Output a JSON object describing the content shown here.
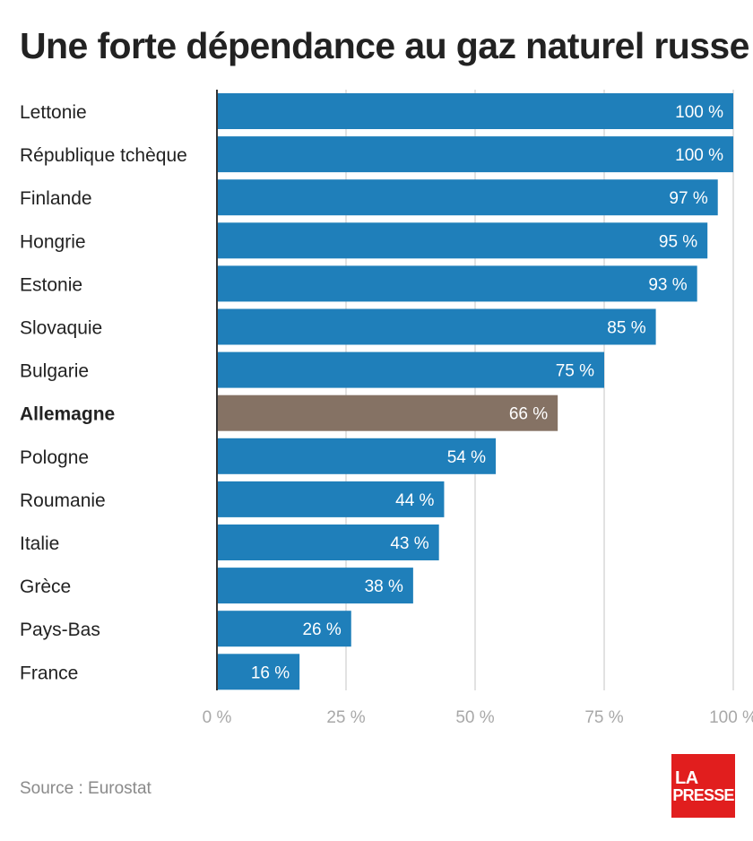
{
  "title": "Une forte dépendance au gaz naturel russe",
  "source": "Source : Eurostat",
  "logo": {
    "line1": "LA",
    "line2": "PRESSE"
  },
  "colors": {
    "bar": "#1f7fba",
    "highlight": "#857264",
    "grid": "#d9d9d9",
    "axis_text": "#a8a8a8",
    "label_text": "#222222",
    "value_text": "#ffffff",
    "logo_bg": "#e11e1e"
  },
  "chart_data": {
    "type": "bar",
    "orientation": "horizontal",
    "categories": [
      "Lettonie",
      "République tchèque",
      "Finlande",
      "Hongrie",
      "Estonie",
      "Slovaquie",
      "Bulgarie",
      "Allemagne",
      "Pologne",
      "Roumanie",
      "Italie",
      "Grèce",
      "Pays-Bas",
      "France"
    ],
    "values": [
      100,
      100,
      97,
      95,
      93,
      85,
      75,
      66,
      54,
      44,
      43,
      38,
      26,
      16
    ],
    "value_labels": [
      "100 %",
      "100 %",
      "97 %",
      "95 %",
      "93 %",
      "85 %",
      "75 %",
      "66 %",
      "54 %",
      "44 %",
      "43 %",
      "38 %",
      "26 %",
      "16 %"
    ],
    "highlight": "Allemagne",
    "xlim": [
      0,
      100
    ],
    "xticks": [
      0,
      25,
      50,
      75,
      100
    ],
    "xtick_labels": [
      "0 %",
      "25 %",
      "50 %",
      "75 %",
      "100 %"
    ],
    "grid": true
  }
}
